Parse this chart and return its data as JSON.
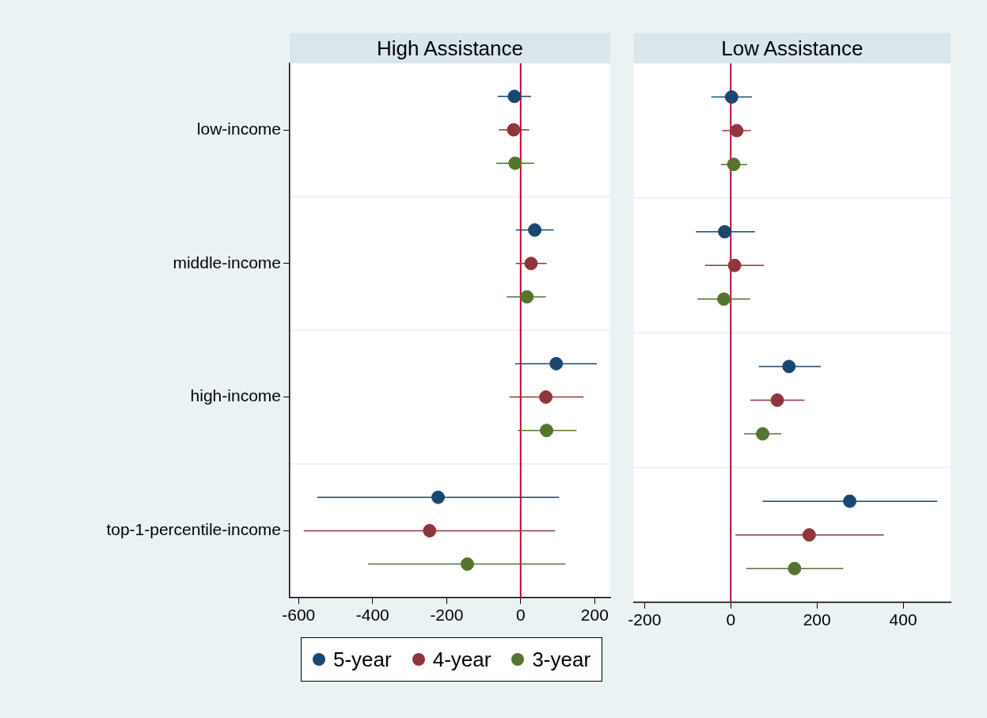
{
  "chart_data": [
    {
      "type": "scatter",
      "title": "High Assistance",
      "orientation": "horizontal",
      "categories": [
        "low-income",
        "middle-income",
        "high-income",
        "top-1-percentile-income"
      ],
      "xlim": [
        -624,
        242
      ],
      "xticks": [
        -600,
        -400,
        -200,
        0,
        200
      ],
      "grid": "y",
      "legend": "bottom",
      "marker": "circle",
      "ref_lines": [
        {
          "axis": "x",
          "value": 0,
          "color": "#c10534"
        }
      ],
      "series": [
        {
          "name": "5-year",
          "color": "#1a476f",
          "values": [
            -17,
            38,
            96,
            -223
          ],
          "errors": [
            [
              -62,
              28
            ],
            [
              -13,
              89
            ],
            [
              -15,
              206
            ],
            [
              -550,
              104
            ]
          ]
        },
        {
          "name": "4-year",
          "color": "#90353b",
          "values": [
            -19,
            28,
            68,
            -246
          ],
          "errors": [
            [
              -59,
              23
            ],
            [
              -13,
              70
            ],
            [
              -30,
              170
            ],
            [
              -586,
              93
            ]
          ]
        },
        {
          "name": "3-year",
          "color": "#55752f",
          "values": [
            -15,
            17,
            70,
            -144
          ],
          "errors": [
            [
              -66,
              36
            ],
            [
              -38,
              68
            ],
            [
              -8,
              151
            ],
            [
              -412,
              121
            ]
          ]
        }
      ]
    },
    {
      "type": "scatter",
      "title": "Low Assistance",
      "orientation": "horizontal",
      "categories": [
        null,
        null,
        null,
        null
      ],
      "xlim": [
        -225,
        510
      ],
      "xticks": [
        -200,
        0,
        200,
        400
      ],
      "grid": "y",
      "marker": "circle",
      "tick_labels": "x",
      "ref_lines": [
        {
          "axis": "x",
          "value": 0,
          "color": "#c10534"
        }
      ],
      "series": [
        {
          "color": "#1a476f",
          "values": [
            2,
            -14,
            135,
            276
          ],
          "errors": [
            [
              -45,
              49
            ],
            [
              -81,
              56
            ],
            [
              65,
              209
            ],
            [
              74,
              479
            ]
          ]
        },
        {
          "color": "#90353b",
          "values": [
            14,
            9,
            108,
            182
          ],
          "errors": [
            [
              -20,
              47
            ],
            [
              -59,
              77
            ],
            [
              45,
              171
            ],
            [
              11,
              355
            ]
          ]
        },
        {
          "color": "#55752f",
          "values": [
            7,
            -16,
            74,
            148
          ],
          "errors": [
            [
              -23,
              38
            ],
            [
              -77,
              45
            ],
            [
              31,
              117
            ],
            [
              36,
              261
            ]
          ]
        }
      ]
    }
  ]
}
